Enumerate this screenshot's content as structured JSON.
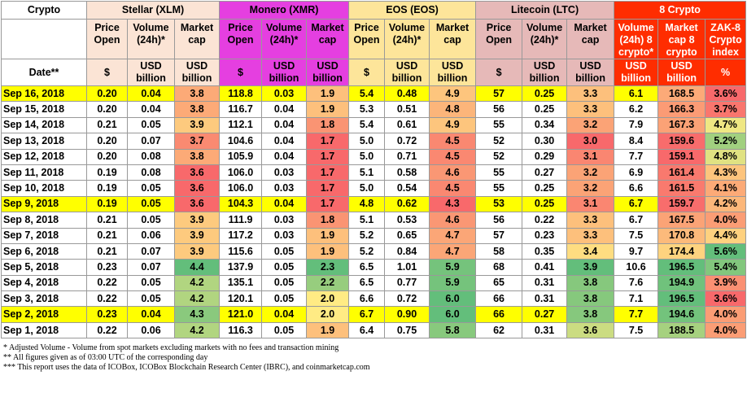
{
  "header": {
    "corner": "Crypto",
    "date_label": "Date**",
    "groups": [
      {
        "name": "Stellar (XLM)",
        "columns": [
          "Price Open",
          "Volume (24h)*",
          "Market cap"
        ],
        "units": [
          "$",
          "USD billion",
          "USD billion"
        ]
      },
      {
        "name": "Monero (XMR)",
        "columns": [
          "Price Open",
          "Volume (24h)*",
          "Market cap"
        ],
        "units": [
          "$",
          "USD billion",
          "USD billion"
        ]
      },
      {
        "name": "EOS (EOS)",
        "columns": [
          "Price Open",
          "Volume (24h)*",
          "Market cap"
        ],
        "units": [
          "$",
          "USD billion",
          "USD billion"
        ]
      },
      {
        "name": "Litecoin (LTC)",
        "columns": [
          "Price Open",
          "Volume (24h)*",
          "Market cap"
        ],
        "units": [
          "$",
          "USD billion",
          "USD billion"
        ]
      },
      {
        "name": "8 Crypto",
        "columns": [
          "Volume (24h) 8 crypto*",
          "Market cap 8 crypto",
          "ZAK-8 Crypto index"
        ],
        "units": [
          "USD billion",
          "USD billion",
          "%"
        ]
      }
    ]
  },
  "rows": [
    {
      "date": "Sep 16, 2018",
      "cells": [
        "0.20",
        "0.04",
        "3.8",
        "118.8",
        "0.03",
        "1.9",
        "5.4",
        "0.48",
        "4.9",
        "57",
        "0.25",
        "3.3",
        "6.1",
        "168.5",
        "3.6%"
      ]
    },
    {
      "date": "Sep 15, 2018",
      "cells": [
        "0.20",
        "0.04",
        "3.8",
        "116.7",
        "0.04",
        "1.9",
        "5.3",
        "0.51",
        "4.8",
        "56",
        "0.25",
        "3.3",
        "6.2",
        "166.3",
        "3.7%"
      ]
    },
    {
      "date": "Sep 14, 2018",
      "cells": [
        "0.21",
        "0.05",
        "3.9",
        "112.1",
        "0.04",
        "1.8",
        "5.4",
        "0.61",
        "4.9",
        "55",
        "0.34",
        "3.2",
        "7.9",
        "167.3",
        "4.7%"
      ]
    },
    {
      "date": "Sep 13, 2018",
      "cells": [
        "0.20",
        "0.07",
        "3.7",
        "104.6",
        "0.04",
        "1.7",
        "5.0",
        "0.72",
        "4.5",
        "52",
        "0.30",
        "3.0",
        "8.4",
        "159.6",
        "5.2%"
      ]
    },
    {
      "date": "Sep 12, 2018",
      "cells": [
        "0.20",
        "0.08",
        "3.8",
        "105.9",
        "0.04",
        "1.7",
        "5.0",
        "0.71",
        "4.5",
        "52",
        "0.29",
        "3.1",
        "7.7",
        "159.1",
        "4.8%"
      ]
    },
    {
      "date": "Sep 11, 2018",
      "cells": [
        "0.19",
        "0.08",
        "3.6",
        "106.0",
        "0.03",
        "1.7",
        "5.1",
        "0.58",
        "4.6",
        "55",
        "0.27",
        "3.2",
        "6.9",
        "161.4",
        "4.3%"
      ]
    },
    {
      "date": "Sep 10, 2018",
      "cells": [
        "0.19",
        "0.05",
        "3.6",
        "106.0",
        "0.03",
        "1.7",
        "5.0",
        "0.54",
        "4.5",
        "55",
        "0.25",
        "3.2",
        "6.6",
        "161.5",
        "4.1%"
      ]
    },
    {
      "date": "Sep 9, 2018",
      "cells": [
        "0.19",
        "0.05",
        "3.6",
        "104.3",
        "0.04",
        "1.7",
        "4.8",
        "0.62",
        "4.3",
        "53",
        "0.25",
        "3.1",
        "6.7",
        "159.7",
        "4.2%"
      ]
    },
    {
      "date": "Sep 8, 2018",
      "cells": [
        "0.21",
        "0.05",
        "3.9",
        "111.9",
        "0.03",
        "1.8",
        "5.1",
        "0.53",
        "4.6",
        "56",
        "0.22",
        "3.3",
        "6.7",
        "167.5",
        "4.0%"
      ]
    },
    {
      "date": "Sep 7, 2018",
      "cells": [
        "0.21",
        "0.06",
        "3.9",
        "117.2",
        "0.03",
        "1.9",
        "5.2",
        "0.65",
        "4.7",
        "57",
        "0.23",
        "3.3",
        "7.5",
        "170.8",
        "4.4%"
      ]
    },
    {
      "date": "Sep 6, 2018",
      "cells": [
        "0.21",
        "0.07",
        "3.9",
        "115.6",
        "0.05",
        "1.9",
        "5.2",
        "0.84",
        "4.7",
        "58",
        "0.35",
        "3.4",
        "9.7",
        "174.4",
        "5.6%"
      ]
    },
    {
      "date": "Sep 5, 2018",
      "cells": [
        "0.23",
        "0.07",
        "4.4",
        "137.9",
        "0.05",
        "2.3",
        "6.5",
        "1.01",
        "5.9",
        "68",
        "0.41",
        "3.9",
        "10.6",
        "196.5",
        "5.4%"
      ]
    },
    {
      "date": "Sep 4, 2018",
      "cells": [
        "0.22",
        "0.05",
        "4.2",
        "135.1",
        "0.05",
        "2.2",
        "6.5",
        "0.77",
        "5.9",
        "65",
        "0.31",
        "3.8",
        "7.6",
        "194.9",
        "3.9%"
      ]
    },
    {
      "date": "Sep 3, 2018",
      "cells": [
        "0.22",
        "0.05",
        "4.2",
        "120.1",
        "0.05",
        "2.0",
        "6.6",
        "0.72",
        "6.0",
        "66",
        "0.31",
        "3.8",
        "7.1",
        "196.5",
        "3.6%"
      ]
    },
    {
      "date": "Sep 2, 2018",
      "cells": [
        "0.23",
        "0.04",
        "4.3",
        "121.0",
        "0.04",
        "2.0",
        "6.7",
        "0.90",
        "6.0",
        "66",
        "0.27",
        "3.8",
        "7.7",
        "194.6",
        "4.0%"
      ]
    },
    {
      "date": "Sep 1, 2018",
      "cells": [
        "0.22",
        "0.06",
        "4.2",
        "116.3",
        "0.05",
        "1.9",
        "6.4",
        "0.75",
        "5.8",
        "62",
        "0.31",
        "3.6",
        "7.5",
        "188.5",
        "4.0%"
      ]
    }
  ],
  "footnotes": [
    "* Adjusted Volume - Volume from spot markets excluding markets with no fees and transaction mining",
    "** All figures given as of 03:00 UTC of the corresponding day",
    "*** This report uses the data of ICOBox, ICOBox Blockchain Research Center (IBRC), and coinmarketcap.com"
  ]
}
